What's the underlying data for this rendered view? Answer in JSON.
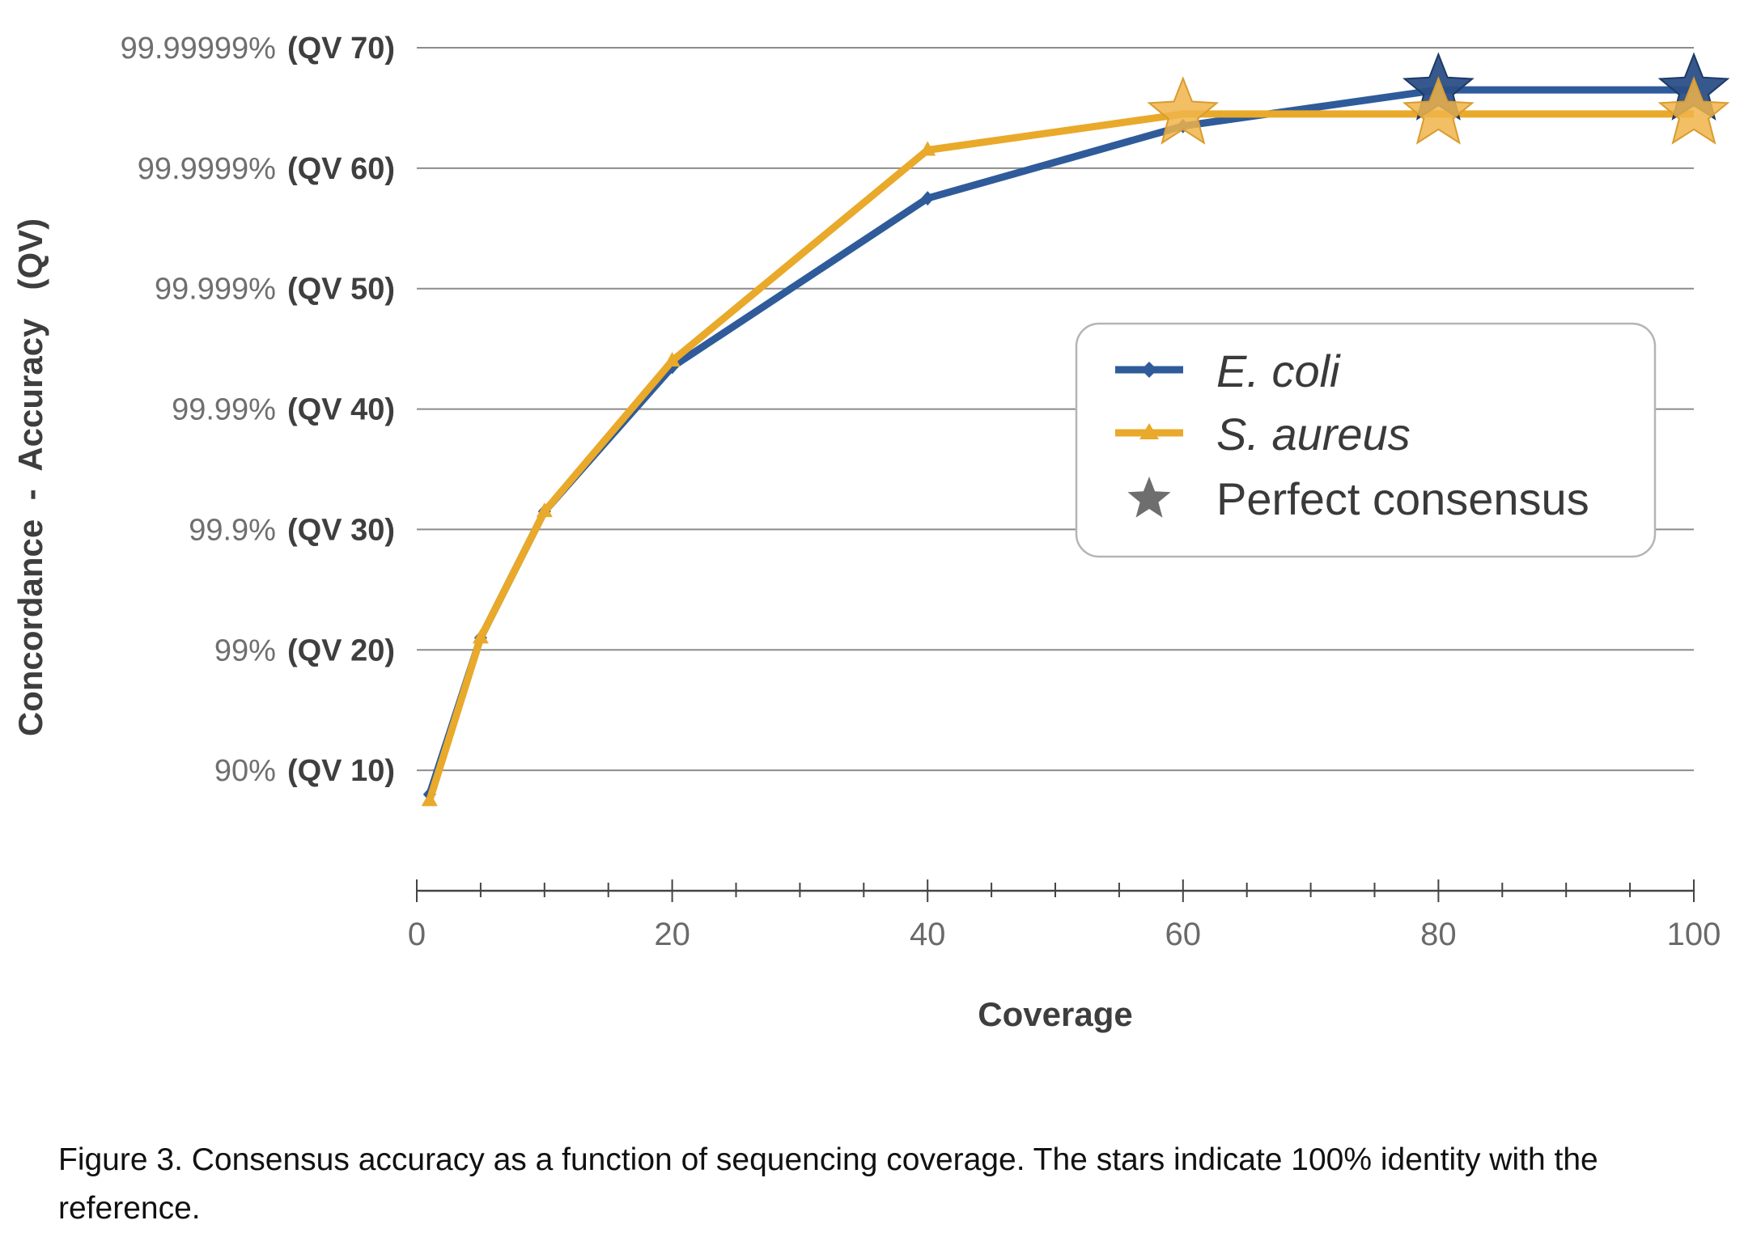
{
  "chart_data": {
    "type": "line",
    "xlabel": "Coverage",
    "ylabel": "Concordance  -  Accuracy   (QV)",
    "xlim": [
      0,
      100
    ],
    "ylim": [
      0,
      80
    ],
    "x_ticks": [
      0,
      20,
      40,
      60,
      80,
      100
    ],
    "x_minor_step": 5,
    "y_ticks": [
      {
        "value": 10,
        "pct": "90%",
        "qv": "(QV 10)"
      },
      {
        "value": 20,
        "pct": "99%",
        "qv": "(QV 20)"
      },
      {
        "value": 30,
        "pct": "99.9%",
        "qv": "(QV 30)"
      },
      {
        "value": 40,
        "pct": "99.99%",
        "qv": "(QV 40)"
      },
      {
        "value": 50,
        "pct": "99.999%",
        "qv": "(QV 50)"
      },
      {
        "value": 60,
        "pct": "99.9999%",
        "qv": "(QV 60)"
      },
      {
        "value": 70,
        "pct": "99.99999%",
        "qv": "(QV 70)"
      }
    ],
    "grid": true,
    "legend_position": "right",
    "series": [
      {
        "name": "E. coli",
        "color": "#2f5b9a",
        "marker": "diamond",
        "x": [
          1,
          5,
          10,
          20,
          40,
          60,
          80,
          100
        ],
        "y": [
          8,
          21,
          31.5,
          43.5,
          57.5,
          63.5,
          66.5,
          66.5
        ],
        "perfect_consensus_x": [
          80,
          100
        ]
      },
      {
        "name": "S. aureus",
        "color": "#e9a92a",
        "marker": "triangle",
        "x": [
          1,
          5,
          10,
          20,
          40,
          60,
          80,
          100
        ],
        "y": [
          7.5,
          21,
          31.5,
          44,
          61.5,
          64.5,
          64.5,
          64.5
        ],
        "perfect_consensus_x": [
          60,
          80,
          100
        ]
      }
    ],
    "legend": [
      {
        "label": "E. coli",
        "color": "#2f5b9a",
        "marker": "diamond"
      },
      {
        "label": "S. aureus",
        "color": "#e9a92a",
        "marker": "triangle"
      },
      {
        "label": "Perfect consensus",
        "color": "#6e6e6e",
        "marker": "star"
      }
    ]
  },
  "caption": "Figure 3.  Consensus accuracy as a function of sequencing coverage.  The stars indicate 100% identity with the reference."
}
